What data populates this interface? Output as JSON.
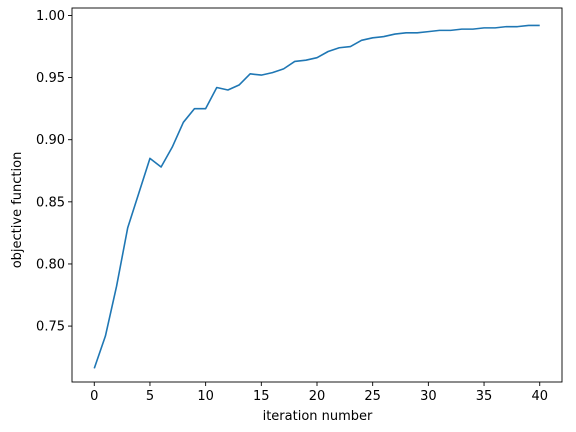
{
  "chart_data": {
    "type": "line",
    "title": "",
    "xlabel": "iteration number",
    "ylabel": "objective function",
    "xlim": [
      -2.0,
      42.0
    ],
    "ylim": [
      0.705,
      1.006
    ],
    "xticks": [
      0,
      5,
      10,
      15,
      20,
      25,
      30,
      35,
      40
    ],
    "xtick_labels": [
      "0",
      "5",
      "10",
      "15",
      "20",
      "25",
      "30",
      "35",
      "40"
    ],
    "yticks": [
      0.75,
      0.8,
      0.85,
      0.9,
      0.95,
      1.0
    ],
    "ytick_labels": [
      "0.75",
      "0.80",
      "0.85",
      "0.90",
      "0.95",
      "1.00"
    ],
    "grid": false,
    "line_color": "#1f77b4",
    "series": [
      {
        "x": [
          0,
          1,
          2,
          3,
          4,
          5,
          6,
          7,
          8,
          9,
          10,
          11,
          12,
          13,
          14,
          15,
          16,
          17,
          18,
          19,
          20,
          21,
          22,
          23,
          24,
          25,
          26,
          27,
          28,
          29,
          30,
          31,
          32,
          33,
          34,
          35,
          36,
          37,
          38,
          39,
          40
        ],
        "values": [
          0.716,
          0.742,
          0.782,
          0.829,
          0.857,
          0.885,
          0.878,
          0.894,
          0.914,
          0.925,
          0.925,
          0.942,
          0.94,
          0.944,
          0.953,
          0.952,
          0.954,
          0.957,
          0.963,
          0.964,
          0.966,
          0.971,
          0.974,
          0.975,
          0.98,
          0.982,
          0.983,
          0.985,
          0.986,
          0.986,
          0.987,
          0.988,
          0.988,
          0.989,
          0.989,
          0.99,
          0.99,
          0.991,
          0.991,
          0.992,
          0.992
        ]
      }
    ]
  }
}
